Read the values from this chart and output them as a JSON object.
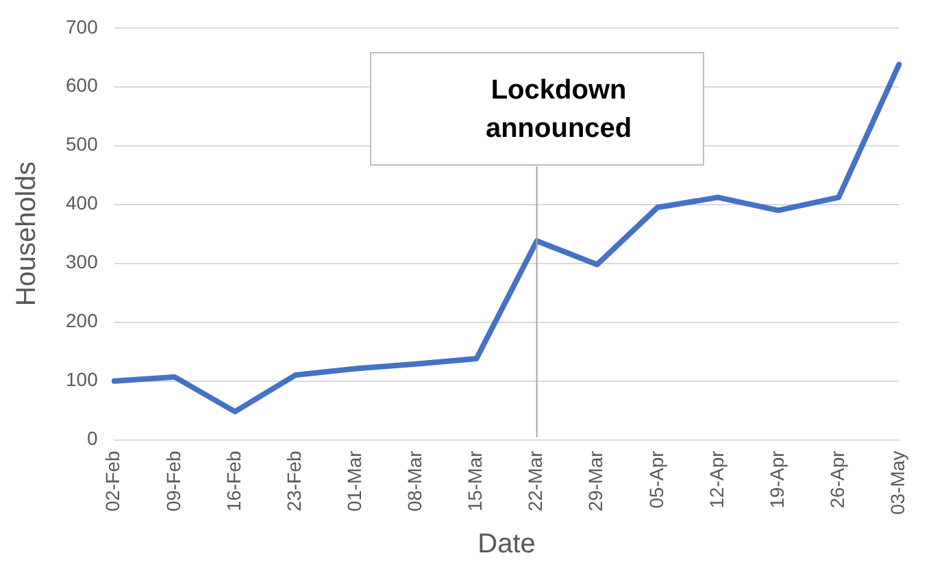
{
  "chart_data": {
    "type": "line",
    "xlabel": "Date",
    "ylabel": "Households",
    "categories": [
      "02-Feb",
      "09-Feb",
      "16-Feb",
      "23-Feb",
      "01-Mar",
      "08-Mar",
      "15-Mar",
      "22-Mar",
      "29-Mar",
      "05-Apr",
      "12-Apr",
      "19-Apr",
      "26-Apr",
      "03-May"
    ],
    "series": [
      {
        "color": "#4472c4",
        "values": [
          100,
          107,
          48,
          110,
          121,
          129,
          138,
          338,
          298,
          395,
          412,
          390,
          412,
          638
        ]
      }
    ],
    "ylim": [
      0,
      700
    ],
    "yticks": [
      0,
      100,
      200,
      300,
      400,
      500,
      600,
      700
    ],
    "grid": "y",
    "legend": false,
    "marker": "none",
    "line_style": "solid",
    "ref_lines": [
      {
        "axis": "x",
        "value": "22-Mar",
        "label": "Lockdown announced",
        "color": "#a6a6a6"
      }
    ]
  }
}
